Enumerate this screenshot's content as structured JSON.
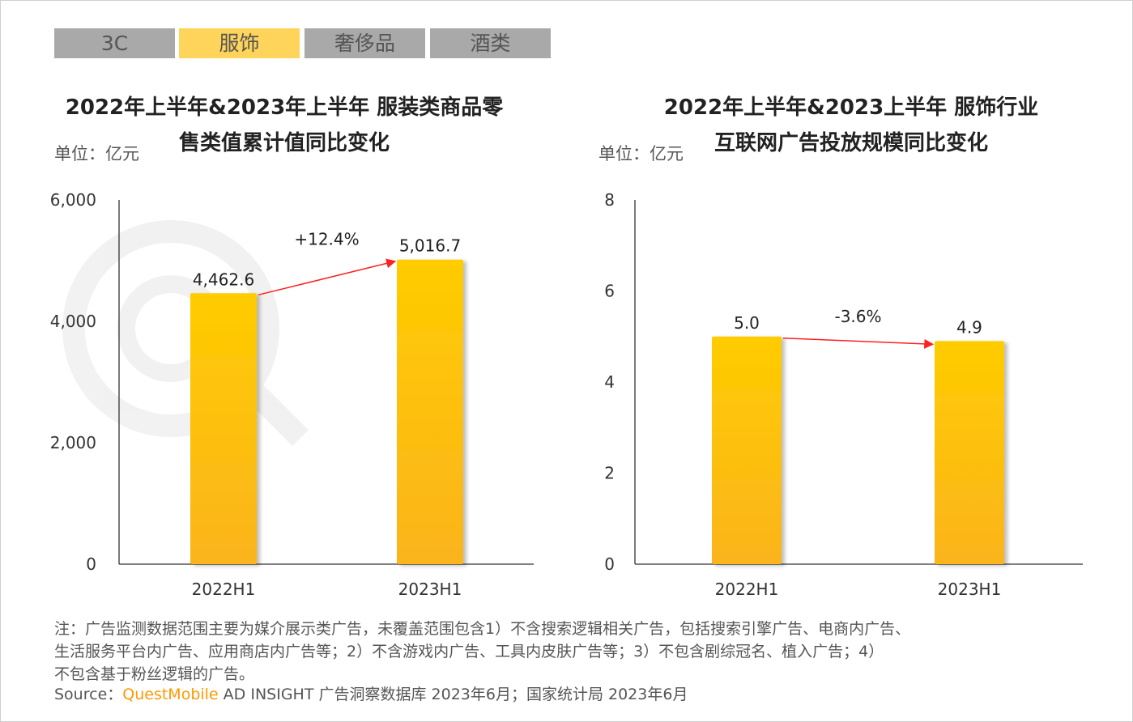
{
  "tabs": [
    {
      "label": "3C",
      "active": false
    },
    {
      "label": "服饰",
      "active": true
    },
    {
      "label": "奢侈品",
      "active": false
    },
    {
      "label": "酒类",
      "active": false
    }
  ],
  "chart_data": [
    {
      "type": "bar",
      "title_lines": [
        "2022年上半年&2023年上半年 服装类商品零",
        "售类值累计值同比变化"
      ],
      "unit": "单位：亿元",
      "categories": [
        "2022H1",
        "2023H1"
      ],
      "values": [
        4462.6,
        5016.7
      ],
      "value_labels": [
        "4,462.6",
        "5,016.7"
      ],
      "ylim": [
        0,
        6000
      ],
      "yticks": [
        0,
        2000,
        4000,
        6000
      ],
      "ytick_labels": [
        "0",
        "2,000",
        "4,000",
        "6,000"
      ],
      "change_label": "+12.4%",
      "bar_color": "#ffc20e",
      "arrow_color": "#ff2020",
      "grid": false
    },
    {
      "type": "bar",
      "title_lines": [
        "2022年上半年&2023上半年 服饰行业",
        "互联网广告投放规模同比变化"
      ],
      "unit": "单位：亿元",
      "categories": [
        "2022H1",
        "2023H1"
      ],
      "values": [
        5.0,
        4.9
      ],
      "value_labels": [
        "5.0",
        "4.9"
      ],
      "ylim": [
        0,
        8
      ],
      "yticks": [
        0,
        2,
        4,
        6,
        8
      ],
      "ytick_labels": [
        "0",
        "2",
        "4",
        "6",
        "8"
      ],
      "change_label": "-3.6%",
      "bar_color": "#ffc20e",
      "arrow_color": "#ff2020",
      "grid": false
    }
  ],
  "notes": {
    "line1": "注：广告监测数据范围主要为媒介展示类广告，未覆盖范围包含1）不含搜索逻辑相关广告，包括搜索引擎广告、电商内广告、",
    "line2": "生活服务平台内广告、应用商店内广告等；2）不含游戏内广告、工具内皮肤广告等；3）不包含剧综冠名、植入广告；4）",
    "line3": "不包含基于粉丝逻辑的广告。",
    "source_prefix": "Source：",
    "source_brand": "QuestMobile",
    "source_rest": " AD INSIGHT 广告洞察数据库 2023年6月；国家统计局 2023年6月"
  }
}
